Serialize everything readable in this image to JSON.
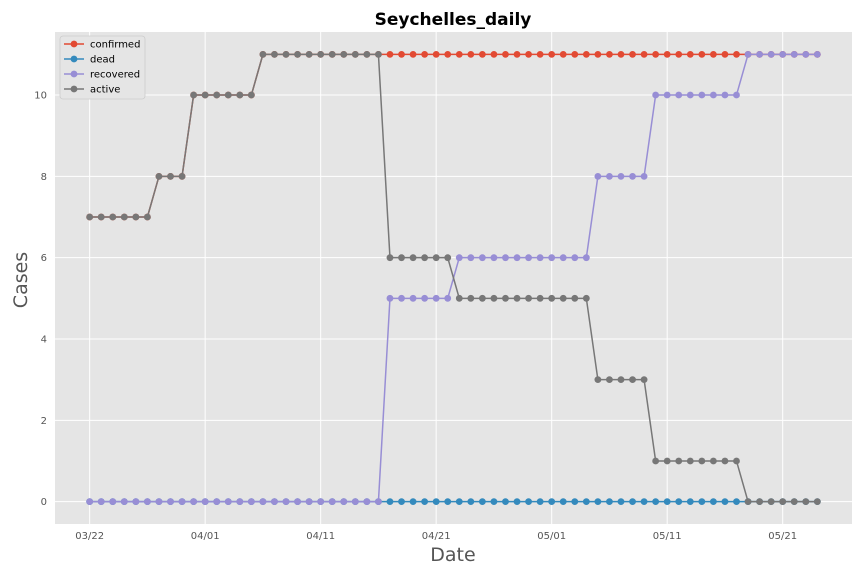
{
  "chart_data": {
    "type": "line",
    "title": "Seychelles_daily",
    "xlabel": "Date",
    "ylabel": "Cases",
    "x_start": "2020-03-22",
    "x_end": "2020-05-24",
    "x_ticks": [
      "03/22",
      "04/01",
      "04/11",
      "04/21",
      "05/01",
      "05/11",
      "05/21"
    ],
    "y_ticks": [
      "0",
      "2",
      "4",
      "6",
      "8",
      "10"
    ],
    "ylim": [
      -0.55,
      11.55
    ],
    "grid": true,
    "legend_position": "top-left",
    "series": [
      {
        "name": "confirmed",
        "color": "#E24A33",
        "values": [
          7,
          7,
          7,
          7,
          7,
          7,
          8,
          8,
          8,
          10,
          10,
          10,
          10,
          10,
          10,
          11,
          11,
          11,
          11,
          11,
          11,
          11,
          11,
          11,
          11,
          11,
          11,
          11,
          11,
          11,
          11,
          11,
          11,
          11,
          11,
          11,
          11,
          11,
          11,
          11,
          11,
          11,
          11,
          11,
          11,
          11,
          11,
          11,
          11,
          11,
          11,
          11,
          11,
          11,
          11,
          11,
          11,
          11,
          11,
          11,
          11,
          11,
          11,
          11
        ]
      },
      {
        "name": "dead",
        "color": "#348ABD",
        "values": [
          0,
          0,
          0,
          0,
          0,
          0,
          0,
          0,
          0,
          0,
          0,
          0,
          0,
          0,
          0,
          0,
          0,
          0,
          0,
          0,
          0,
          0,
          0,
          0,
          0,
          0,
          0,
          0,
          0,
          0,
          0,
          0,
          0,
          0,
          0,
          0,
          0,
          0,
          0,
          0,
          0,
          0,
          0,
          0,
          0,
          0,
          0,
          0,
          0,
          0,
          0,
          0,
          0,
          0,
          0,
          0,
          0,
          0,
          0,
          0,
          0,
          0,
          0,
          0
        ]
      },
      {
        "name": "recovered",
        "color": "#988ED5",
        "values": [
          0,
          0,
          0,
          0,
          0,
          0,
          0,
          0,
          0,
          0,
          0,
          0,
          0,
          0,
          0,
          0,
          0,
          0,
          0,
          0,
          0,
          0,
          0,
          0,
          0,
          0,
          5,
          5,
          5,
          5,
          5,
          5,
          6,
          6,
          6,
          6,
          6,
          6,
          6,
          6,
          6,
          6,
          6,
          6,
          8,
          8,
          8,
          8,
          8,
          10,
          10,
          10,
          10,
          10,
          10,
          10,
          10,
          11,
          11,
          11,
          11,
          11,
          11,
          11
        ]
      },
      {
        "name": "active",
        "color": "#777777",
        "values": [
          7,
          7,
          7,
          7,
          7,
          7,
          8,
          8,
          8,
          10,
          10,
          10,
          10,
          10,
          10,
          11,
          11,
          11,
          11,
          11,
          11,
          11,
          11,
          11,
          11,
          11,
          6,
          6,
          6,
          6,
          6,
          6,
          5,
          5,
          5,
          5,
          5,
          5,
          5,
          5,
          5,
          5,
          5,
          5,
          3,
          3,
          3,
          3,
          3,
          1,
          1,
          1,
          1,
          1,
          1,
          1,
          1,
          0,
          0,
          0,
          0,
          0,
          0,
          0
        ]
      }
    ]
  }
}
